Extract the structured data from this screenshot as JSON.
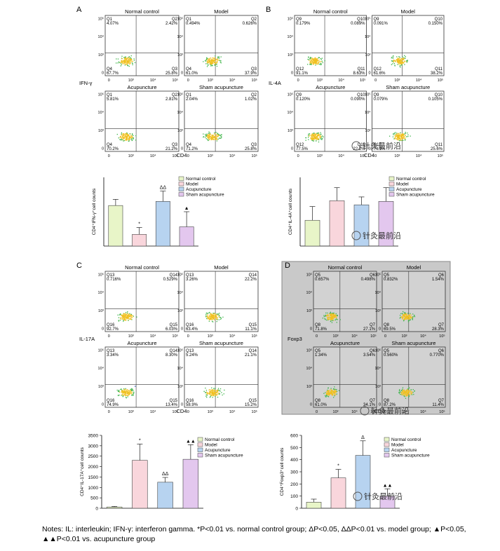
{
  "figure": {
    "panels": [
      {
        "letter": "A",
        "ylabel": "IFN-γ",
        "xlabel": "CD4",
        "gray": false,
        "subplots": [
          {
            "title": "Normal control",
            "q": [
              [
                "Q1",
                "4.07%"
              ],
              [
                "Q2",
                "2.42%"
              ],
              [
                "Q4",
                "67.7%"
              ],
              [
                "Q3",
                "25.8%"
              ]
            ]
          },
          {
            "title": "Model",
            "q": [
              [
                "Q1",
                "0.494%"
              ],
              [
                "Q2",
                "0.626%"
              ],
              [
                "Q4",
                "61.0%"
              ],
              [
                "Q3",
                "37.9%"
              ]
            ]
          },
          {
            "title": "Acupuncture",
            "q": [
              [
                "Q1",
                "5.81%"
              ],
              [
                "Q2",
                "2.81%"
              ],
              [
                "Q4",
                "70.2%"
              ],
              [
                "Q3",
                "21.2%"
              ]
            ]
          },
          {
            "title": "Sham acupuncture",
            "q": [
              [
                "Q1",
                "2.04%"
              ],
              [
                "Q2",
                "1.02%"
              ],
              [
                "Q4",
                "71.2%"
              ],
              [
                "Q3",
                "25.8%"
              ]
            ]
          }
        ]
      },
      {
        "letter": "B",
        "ylabel": "IL-4A",
        "xlabel": "CD4",
        "gray": false,
        "subplots": [
          {
            "title": "Normal control",
            "q": [
              [
                "Q9",
                "0.179%"
              ],
              [
                "Q10",
                "0.089%"
              ],
              [
                "Q12",
                "91.1%"
              ],
              [
                "Q11",
                "8.63%"
              ]
            ]
          },
          {
            "title": "Model",
            "q": [
              [
                "Q9",
                "0.091%"
              ],
              [
                "Q10",
                "0.150%"
              ],
              [
                "Q12",
                "61.6%"
              ],
              [
                "Q11",
                "38.2%"
              ]
            ]
          },
          {
            "title": "Acupuncture",
            "q": [
              [
                "Q9",
                "0.120%"
              ],
              [
                "Q10",
                "0.090%"
              ],
              [
                "Q12",
                "77.5%"
              ],
              [
                "Q11",
                "22.2%"
              ]
            ]
          },
          {
            "title": "Sham acupuncture",
            "q": [
              [
                "Q9",
                "0.079%"
              ],
              [
                "Q10",
                "0.105%"
              ],
              [
                "Q12",
                "74.1%"
              ],
              [
                "Q11",
                "25.6%"
              ]
            ]
          }
        ]
      },
      {
        "letter": "C",
        "ylabel": "IL-17A",
        "xlabel": "CD4",
        "gray": false,
        "subplots": [
          {
            "title": "Normal control",
            "q": [
              [
                "Q13",
                "0.716%"
              ],
              [
                "Q14",
                "0.529%"
              ],
              [
                "Q16",
                "92.7%"
              ],
              [
                "Q15",
                "6.03%"
              ]
            ]
          },
          {
            "title": "Model",
            "q": [
              [
                "Q13",
                "3.26%"
              ],
              [
                "Q14",
                "22.2%"
              ],
              [
                "Q16",
                "63.4%"
              ],
              [
                "Q15",
                "11.1%"
              ]
            ]
          },
          {
            "title": "Acupuncture",
            "q": [
              [
                "Q13",
                "3.34%"
              ],
              [
                "Q14",
                "8.30%"
              ],
              [
                "Q16",
                "74.9%"
              ],
              [
                "Q15",
                "13.4%"
              ]
            ]
          },
          {
            "title": "Sham acupuncture",
            "q": [
              [
                "Q13",
                "5.24%"
              ],
              [
                "Q14",
                "21.1%"
              ],
              [
                "Q16",
                "58.9%"
              ],
              [
                "Q15",
                "15.2%"
              ]
            ]
          }
        ]
      },
      {
        "letter": "D",
        "ylabel": "Foxp3",
        "xlabel": "CD4",
        "gray": true,
        "subplots": [
          {
            "title": "Normal control",
            "q": [
              [
                "Q5",
                "0.657%"
              ],
              [
                "Q6",
                "0.498%"
              ],
              [
                "Q8",
                "71.8%"
              ],
              [
                "Q7",
                "27.1%"
              ]
            ]
          },
          {
            "title": "Model",
            "q": [
              [
                "Q5",
                "0.832%"
              ],
              [
                "Q6",
                "1.54%"
              ],
              [
                "Q8",
                "69.5%"
              ],
              [
                "Q7",
                "28.3%"
              ]
            ]
          },
          {
            "title": "Acupuncture",
            "q": [
              [
                "Q5",
                "1.34%"
              ],
              [
                "Q6",
                "3.54%"
              ],
              [
                "Q8",
                "61.0%"
              ],
              [
                "Q7",
                "34.1%"
              ]
            ]
          },
          {
            "title": "Sham acupuncture",
            "q": [
              [
                "Q5",
                "0.560%"
              ],
              [
                "Q6",
                "0.770%"
              ],
              [
                "Q8",
                "87.2%"
              ],
              [
                "Q7",
                "11.4%"
              ]
            ]
          }
        ]
      }
    ],
    "axis_ticks": [
      "0",
      "10³",
      "10⁴",
      "10⁵"
    ],
    "watermark": "针灸最前沿"
  },
  "chart_data": [
    {
      "type": "bar",
      "ylabel": "CD4⁺IFN-γ⁺cell counts",
      "categories": [
        "Normal control",
        "Model",
        "Acupuncture",
        "Sham acupuncture"
      ],
      "values": [
        295,
        85,
        325,
        140
      ],
      "errors": [
        45,
        50,
        75,
        110
      ],
      "marks": [
        "",
        "*",
        "ΔΔ",
        "▲"
      ],
      "ylim": [
        0,
        500
      ],
      "ticks": [],
      "colors": [
        "#e8f5c8",
        "#f9d6dc",
        "#b7d3f0",
        "#e3c7ee"
      ]
    },
    {
      "type": "bar",
      "ylabel": "CD4⁺IL-4A⁺cell counts",
      "categories": [
        "Normal control",
        "Model",
        "Acupuncture",
        "Sham acupuncture"
      ],
      "values": [
        7.5,
        13.2,
        12.0,
        13.0
      ],
      "errors": [
        4.0,
        3.8,
        2.3,
        4.0
      ],
      "marks": [
        "",
        "",
        "",
        ""
      ],
      "ylim": [
        0,
        20
      ],
      "ticks": [],
      "colors": [
        "#e8f5c8",
        "#f9d6dc",
        "#b7d3f0",
        "#e3c7ee"
      ]
    },
    {
      "type": "bar",
      "ylabel": "CD4⁺IL-17A⁺cell counts",
      "categories": [
        "Normal control",
        "Model",
        "Acupuncture",
        "Sham acupuncture"
      ],
      "values": [
        60,
        2300,
        1250,
        2350
      ],
      "errors": [
        30,
        780,
        230,
        700
      ],
      "marks": [
        "",
        "*",
        "ΔΔ",
        "▲▲"
      ],
      "ylim": [
        0,
        3500
      ],
      "ticks": [
        "0",
        "500",
        "1000",
        "1500",
        "2000",
        "2500",
        "3000",
        "3500"
      ],
      "colors": [
        "#e8f5c8",
        "#f9d6dc",
        "#b7d3f0",
        "#e3c7ee"
      ]
    },
    {
      "type": "bar",
      "ylabel": "CD4⁺Foxp3⁺cell counts",
      "categories": [
        "Normal control",
        "Model",
        "Acupuncture",
        "Sham acupuncture"
      ],
      "values": [
        50,
        250,
        435,
        100
      ],
      "errors": [
        25,
        70,
        120,
        60
      ],
      "marks": [
        "",
        "*",
        "Δ",
        "▲▲"
      ],
      "ylim": [
        0,
        600
      ],
      "ticks": [
        "0",
        "100",
        "200",
        "300",
        "400",
        "500",
        "600"
      ],
      "colors": [
        "#e8f5c8",
        "#f9d6dc",
        "#b7d3f0",
        "#e3c7ee"
      ]
    }
  ],
  "notes": {
    "line1_a": "Notes: IL: interleukin; IFN-γ: interferon gamma.",
    "line1_b": "*P<0.01 vs. normal control group;",
    "line1_c": "ΔP<0.05, ΔΔP<0.01 vs. model group;",
    "line1_d": "▲P<0.05,",
    "line2": "▲▲P<0.01 vs. acupuncture group"
  }
}
